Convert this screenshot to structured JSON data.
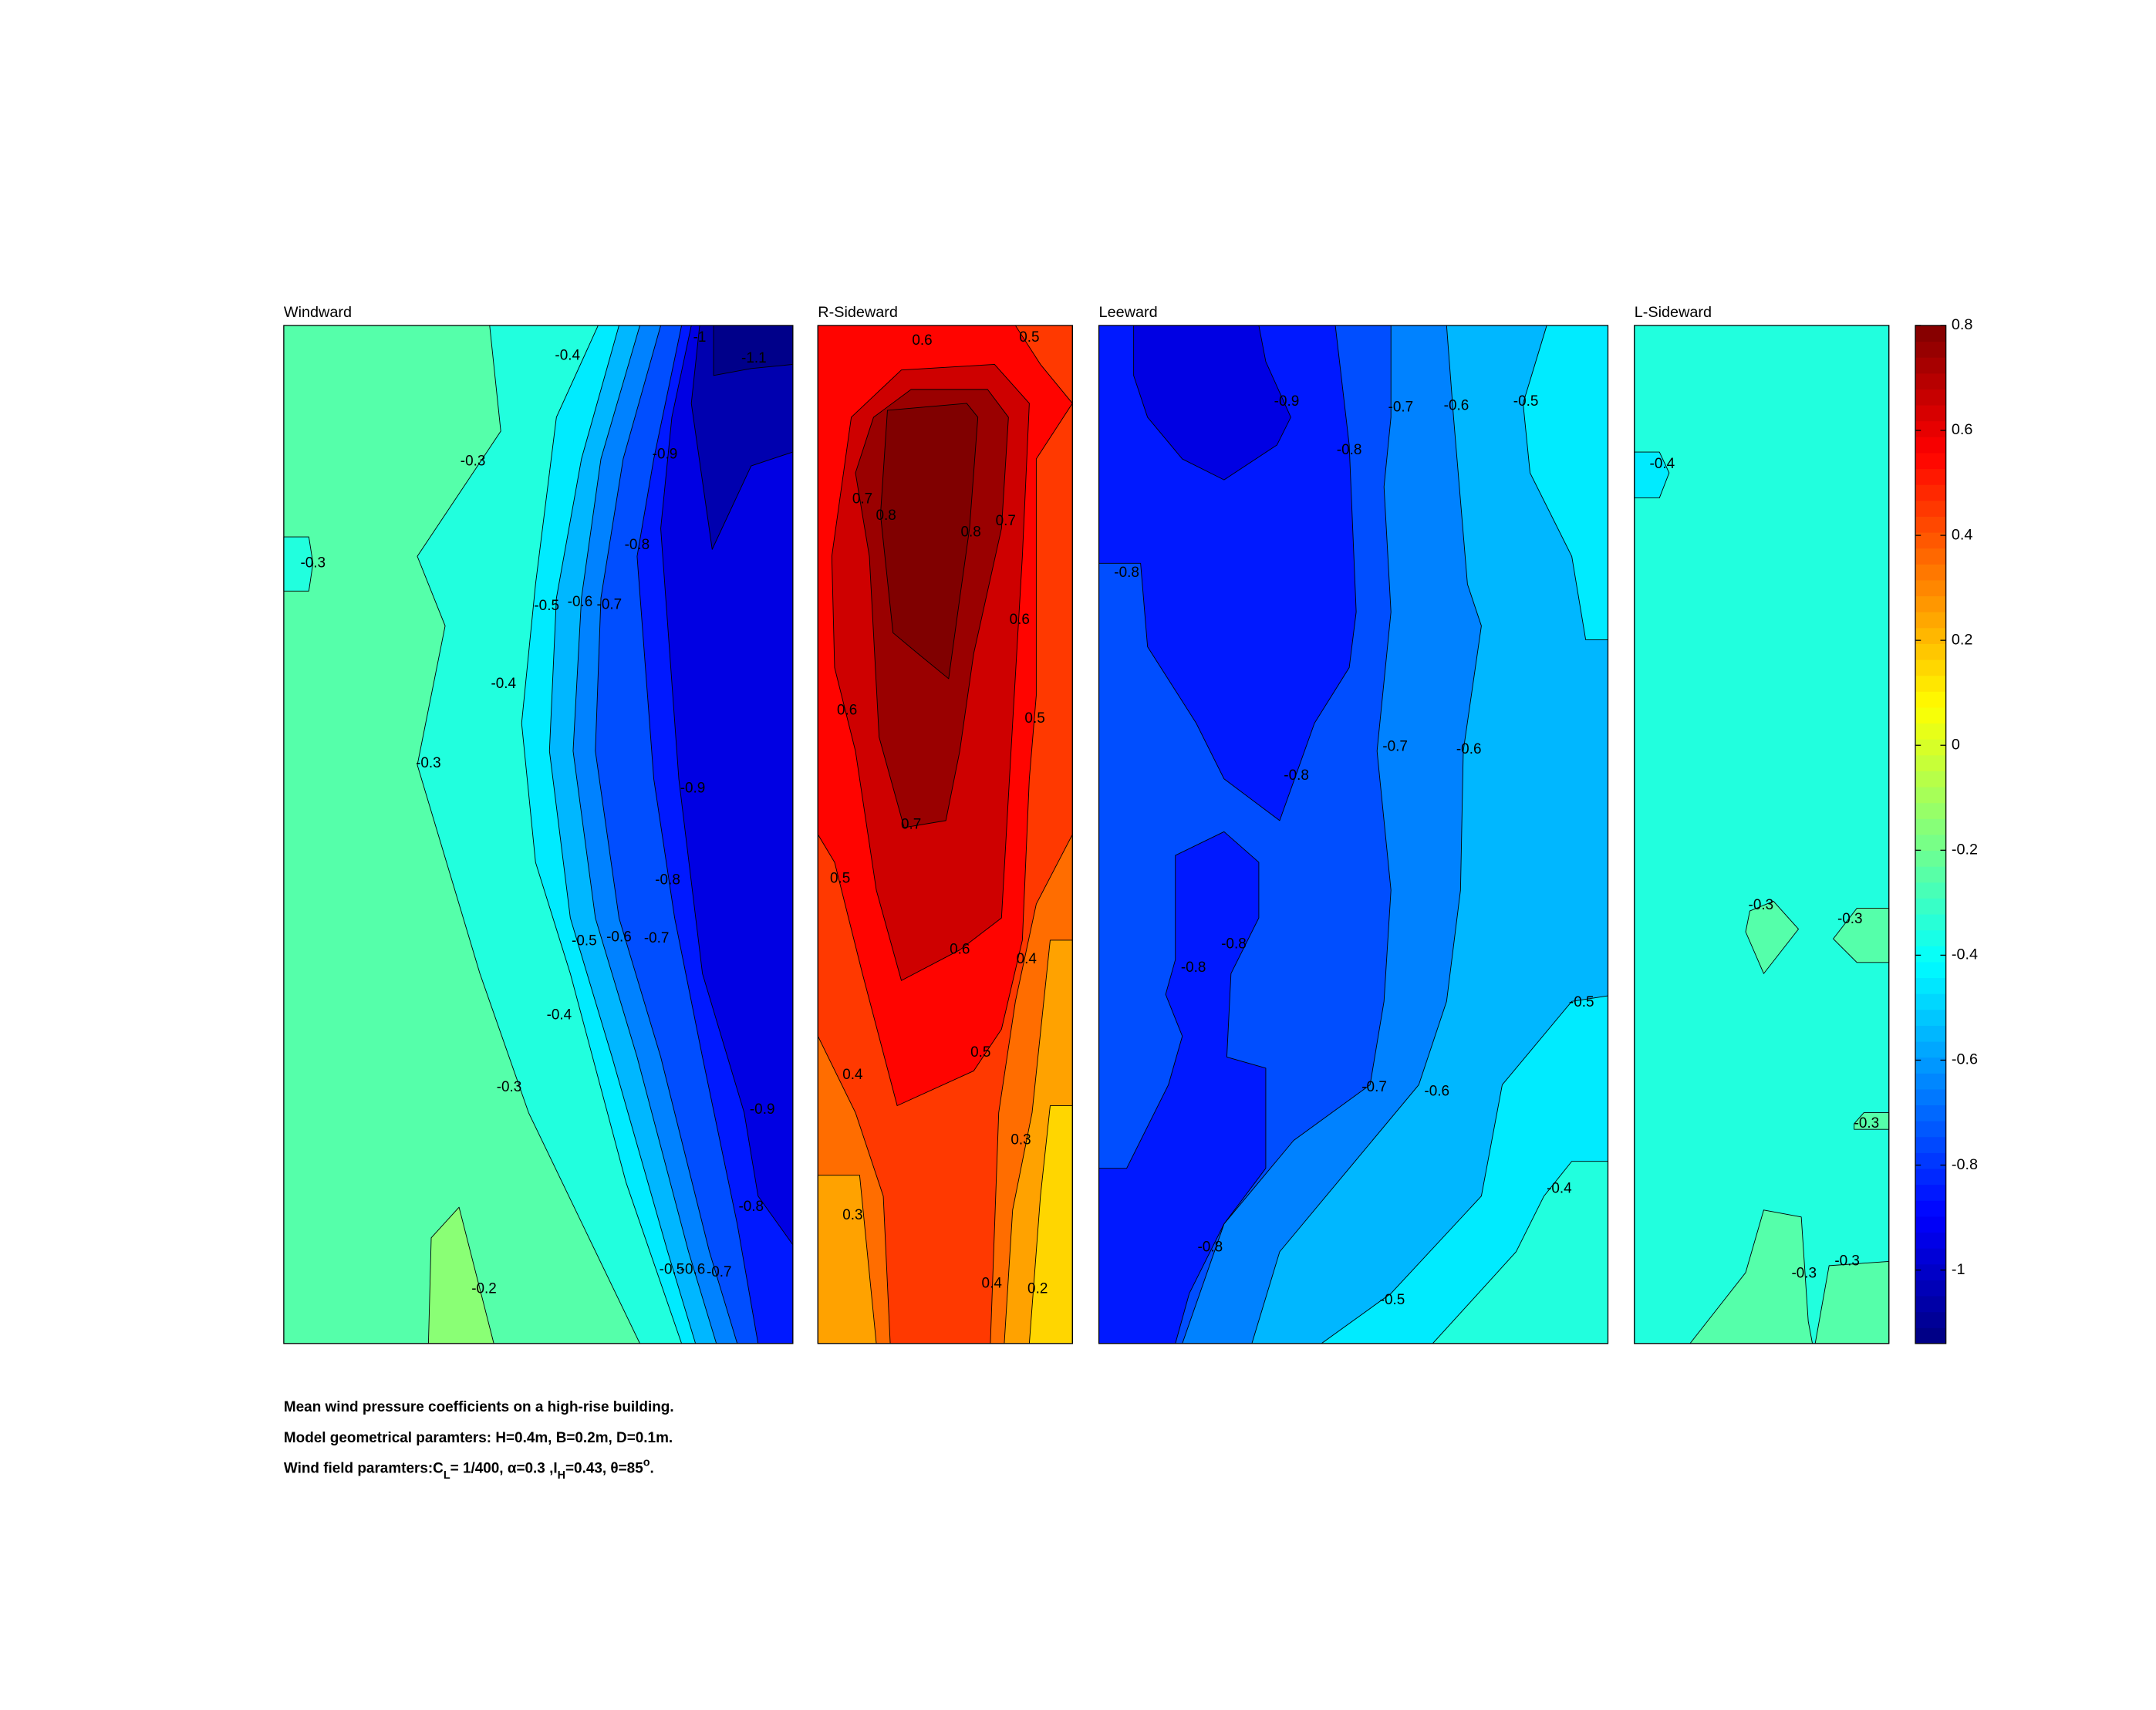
{
  "chart_data": {
    "type": "contour",
    "panels": [
      {
        "title": "Windward",
        "fill_levels": [
          -0.25,
          -0.35,
          -0.15,
          -0.35,
          -0.45,
          -0.55,
          -0.65,
          -0.75,
          -0.85,
          -0.95,
          -1.05,
          -1.12
        ],
        "contour_labels": [
          -0.4,
          -1,
          -1.1,
          -0.3,
          -0.9,
          -0.3,
          -0.8,
          -0.5,
          -0.6,
          -0.7,
          -0.4,
          -0.3,
          -0.9,
          -0.8,
          -0.5,
          -0.6,
          -0.7,
          -0.4,
          -0.3,
          -0.9,
          -0.8,
          -0.2,
          -0.5,
          -0.6,
          -0.7
        ]
      },
      {
        "title": "R-Sideward",
        "fill_levels": [
          0.35,
          0.25,
          0.25,
          0.15,
          0.45,
          0.55,
          0.45,
          0.65,
          0.75,
          0.85
        ],
        "contour_labels": [
          0.6,
          0.5,
          0.7,
          0.8,
          0.8,
          0.7,
          0.6,
          0.6,
          0.5,
          0.7,
          0.5,
          0.6,
          0.4,
          0.5,
          0.4,
          0.3,
          0.3,
          0.4,
          0.2
        ]
      },
      {
        "title": "Leeward",
        "fill_levels": [
          -0.45,
          -0.55,
          -0.35,
          -0.65,
          -0.75,
          -0.85,
          -0.85,
          -0.95
        ],
        "contour_labels": [
          -0.9,
          -0.7,
          -0.6,
          -0.5,
          -0.8,
          -0.8,
          -0.7,
          -0.6,
          -0.8,
          -0.8,
          -0.8,
          -0.5,
          -0.7,
          -0.6,
          -0.4,
          -0.8,
          -0.5
        ]
      },
      {
        "title": "L-Sideward",
        "fill_levels": [
          -0.35,
          -0.45,
          -0.25,
          -0.25,
          -0.25,
          -0.25,
          -0.25
        ],
        "contour_labels": [
          -0.4,
          -0.3,
          -0.3,
          -0.3,
          -0.3,
          -0.3
        ]
      }
    ],
    "colorbar": {
      "colormap": "jet",
      "clim": [
        -1.14,
        0.8
      ],
      "ticks": [
        0.8,
        0.6,
        0.4,
        0.2,
        0,
        -0.2,
        -0.4,
        -0.6,
        -0.8,
        -1
      ]
    },
    "caption": {
      "line1": "Mean wind pressure coefficients on a high-rise building.",
      "line2": "Model geometrical paramters: H=0.4m, B=0.2m, D=0.1m.",
      "line3": [
        "Wind field paramters:C",
        "L",
        "= 1/400, α=0.3 ,I",
        "H",
        "=0.43, θ=85",
        "o",
        "."
      ]
    }
  }
}
